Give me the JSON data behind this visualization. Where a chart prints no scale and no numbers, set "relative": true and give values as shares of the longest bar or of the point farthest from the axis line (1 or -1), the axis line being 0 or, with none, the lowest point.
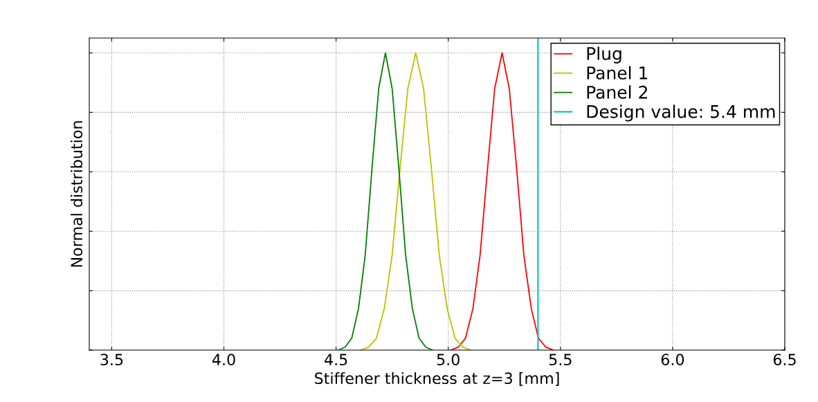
{
  "chart_data": {
    "type": "line",
    "xlabel": "Stiffener thickness at z=3 [mm]",
    "ylabel": "Normal distribution",
    "relative": true,
    "xlim": [
      3.4,
      6.5
    ],
    "xticks": [
      {
        "value": 3.5,
        "label": "3.5"
      },
      {
        "value": 4.0,
        "label": "4.0"
      },
      {
        "value": 4.5,
        "label": "4.5"
      },
      {
        "value": 5.0,
        "label": "5.0"
      },
      {
        "value": 5.5,
        "label": "5.5"
      },
      {
        "value": 6.0,
        "label": "6.0"
      },
      {
        "value": 6.5,
        "label": "6.5"
      }
    ],
    "grid": true,
    "legend": "top right",
    "line_style": "solid",
    "marker": "none",
    "series": [
      {
        "name": "Plug",
        "color": "#ff0000",
        "x": [
          5.012,
          5.045,
          5.077,
          5.11,
          5.142,
          5.175,
          5.207,
          5.24,
          5.272,
          5.305,
          5.337,
          5.37,
          5.402,
          5.435,
          5.468
        ],
        "values": [
          0,
          0.01,
          0.04,
          0.14,
          0.32,
          0.61,
          0.88,
          1,
          0.88,
          0.61,
          0.32,
          0.14,
          0.04,
          0.01,
          0
        ]
      },
      {
        "name": "Panel 1",
        "color": "#bfbf00",
        "x": [
          4.61,
          4.645,
          4.68,
          4.715,
          4.75,
          4.785,
          4.82,
          4.855,
          4.89,
          4.925,
          4.96,
          4.995,
          5.03,
          5.065,
          5.1
        ],
        "values": [
          0,
          0.01,
          0.04,
          0.14,
          0.32,
          0.61,
          0.88,
          1,
          0.88,
          0.61,
          0.32,
          0.14,
          0.04,
          0.01,
          0
        ]
      },
      {
        "name": "Panel 2",
        "color": "#008000",
        "x": [
          4.51,
          4.54,
          4.57,
          4.6,
          4.63,
          4.66,
          4.69,
          4.72,
          4.75,
          4.78,
          4.81,
          4.84,
          4.87,
          4.9,
          4.93
        ],
        "values": [
          0,
          0.01,
          0.04,
          0.14,
          0.32,
          0.61,
          0.88,
          1,
          0.88,
          0.61,
          0.32,
          0.14,
          0.04,
          0.01,
          0
        ]
      }
    ],
    "ref_lines": [
      {
        "axis": "x",
        "value": 5.4,
        "label": "Design value: 5.4 mm",
        "color": "#00bfbf",
        "line_style": "solid"
      }
    ]
  }
}
